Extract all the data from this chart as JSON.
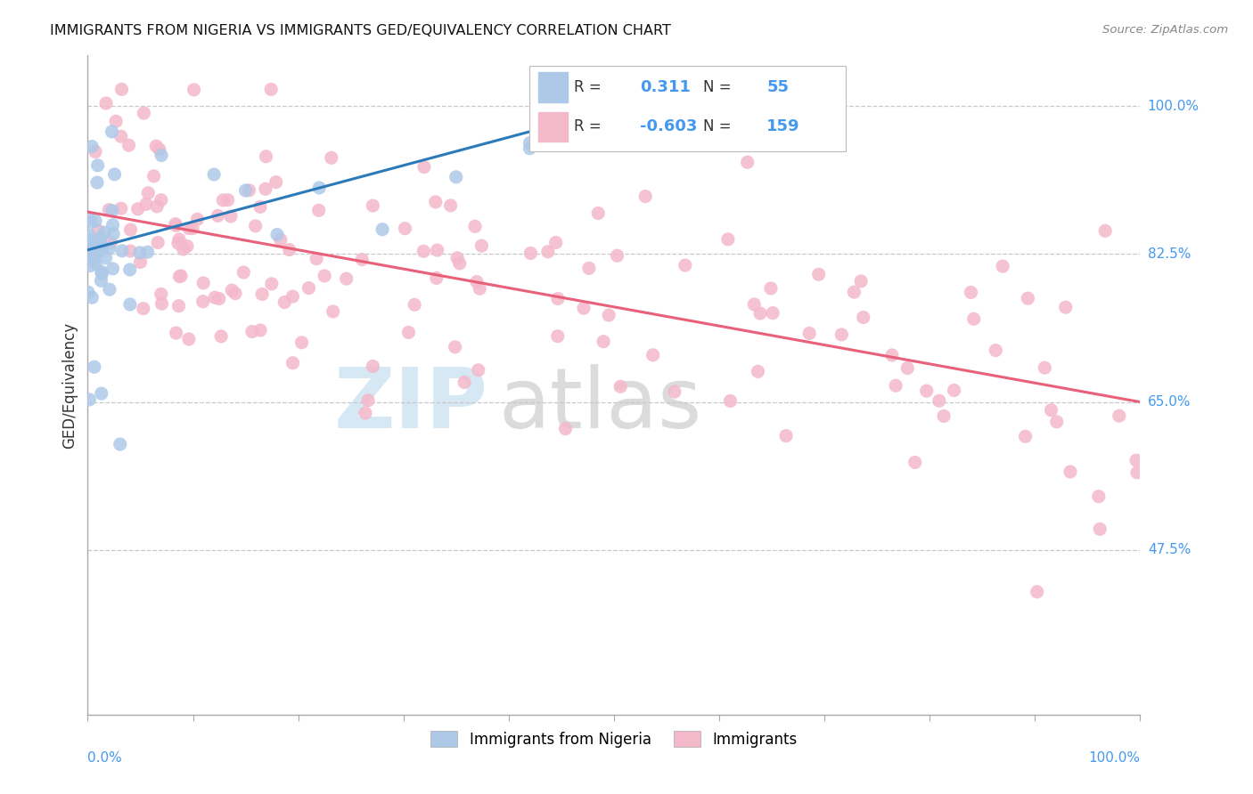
{
  "title": "IMMIGRANTS FROM NIGERIA VS IMMIGRANTS GED/EQUIVALENCY CORRELATION CHART",
  "source": "Source: ZipAtlas.com",
  "ylabel": "GED/Equivalency",
  "ytick_values": [
    1.0,
    0.825,
    0.65,
    0.475
  ],
  "ytick_labels": [
    "100.0%",
    "82.5%",
    "65.0%",
    "47.5%"
  ],
  "legend_blue_label": "Immigrants from Nigeria",
  "legend_pink_label": "Immigrants",
  "legend_blue_R_val": "0.311",
  "legend_blue_N_val": "55",
  "legend_pink_R_val": "-0.603",
  "legend_pink_N_val": "159",
  "blue_color": "#aec9e8",
  "pink_color": "#f4b8cb",
  "blue_line_color": "#2b7bba",
  "pink_line_color": "#e8607a",
  "xlim": [
    0.0,
    1.0
  ],
  "ylim": [
    0.28,
    1.06
  ],
  "blue_R": 0.311,
  "pink_R": -0.603,
  "blue_N": 55,
  "pink_N": 159,
  "blue_line_x0": 0.0,
  "blue_line_y0": 0.83,
  "blue_line_x1": 0.42,
  "blue_line_y1": 0.97,
  "pink_line_x0": 0.0,
  "pink_line_y0": 0.875,
  "pink_line_x1": 1.0,
  "pink_line_y1": 0.65
}
